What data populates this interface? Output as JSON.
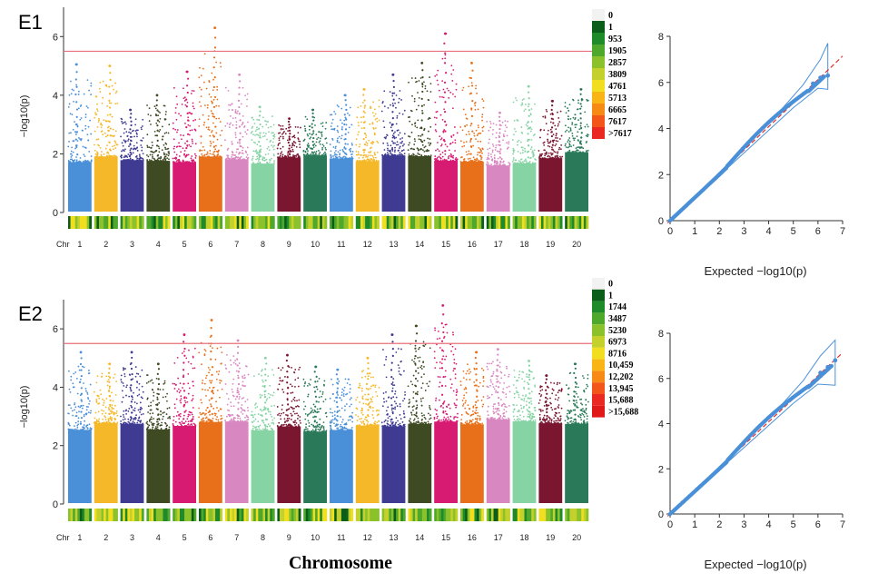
{
  "figure": {
    "bottom_xlabel": "Chromosome",
    "chr_prefix": "Chr"
  },
  "chart_data": [
    {
      "type": "scatter",
      "kind": "manhattan",
      "panel_label": "E1",
      "ylabel": "−log10(p)",
      "ylim": [
        0,
        7
      ],
      "yticks": [
        0,
        2,
        4,
        6
      ],
      "threshold": 5.5,
      "threshold_color": "#e8707a",
      "chromosomes": [
        "1",
        "2",
        "3",
        "4",
        "5",
        "6",
        "7",
        "8",
        "9",
        "10",
        "11",
        "12",
        "13",
        "14",
        "15",
        "16",
        "17",
        "18",
        "19",
        "20"
      ],
      "chromosome_colors": [
        "#4a90d9",
        "#f5b828",
        "#3f3b93",
        "#3e4a22",
        "#d81b72",
        "#e8701a",
        "#d987c0",
        "#86d3a4",
        "#7a1630",
        "#2a7a5a",
        "#4a90d9",
        "#f5b828",
        "#3f3b93",
        "#3e4a22",
        "#d81b72",
        "#e8701a",
        "#d987c0",
        "#86d3a4",
        "#7a1630",
        "#2a7a5a"
      ],
      "chromosome_max_neglogp": [
        5.05,
        5.0,
        3.5,
        4.0,
        4.8,
        6.3,
        4.7,
        3.6,
        3.2,
        3.5,
        4.0,
        4.2,
        4.7,
        5.1,
        6.1,
        5.1,
        3.4,
        4.3,
        3.8,
        4.2
      ],
      "density_legend": [
        "0",
        "1",
        "953",
        "1905",
        "2857",
        "3809",
        "4761",
        "5713",
        "6665",
        "7617",
        ">7617"
      ]
    },
    {
      "type": "scatter",
      "kind": "manhattan",
      "panel_label": "E2",
      "ylabel": "−log10(p)",
      "ylim": [
        0,
        7
      ],
      "yticks": [
        0,
        2,
        4,
        6
      ],
      "threshold": 5.5,
      "threshold_color": "#e8707a",
      "chromosomes": [
        "1",
        "2",
        "3",
        "4",
        "5",
        "6",
        "7",
        "8",
        "9",
        "10",
        "11",
        "12",
        "13",
        "14",
        "15",
        "16",
        "17",
        "18",
        "19",
        "20"
      ],
      "chromosome_colors": [
        "#4a90d9",
        "#f5b828",
        "#3f3b93",
        "#3e4a22",
        "#d81b72",
        "#e8701a",
        "#d987c0",
        "#86d3a4",
        "#7a1630",
        "#2a7a5a",
        "#4a90d9",
        "#f5b828",
        "#3f3b93",
        "#3e4a22",
        "#d81b72",
        "#e8701a",
        "#d987c0",
        "#86d3a4",
        "#7a1630",
        "#2a7a5a"
      ],
      "chromosome_max_neglogp": [
        5.2,
        4.8,
        5.2,
        4.8,
        5.8,
        6.3,
        5.6,
        5.0,
        5.1,
        4.7,
        4.6,
        5.0,
        5.8,
        6.1,
        6.8,
        5.2,
        5.3,
        4.9,
        4.4,
        4.8
      ],
      "density_legend": [
        "0",
        "1",
        "1744",
        "3487",
        "5230",
        "6973",
        "8716",
        "10,459",
        "12,202",
        "13,945",
        "15,688",
        ">15,688"
      ]
    },
    {
      "type": "scatter",
      "kind": "qq",
      "xlabel": "Expected −log10(p)",
      "xlim": [
        0,
        7
      ],
      "ylim": [
        0,
        8
      ],
      "xticks": [
        0,
        1,
        2,
        3,
        4,
        5,
        6,
        7
      ],
      "yticks": [
        0,
        2,
        4,
        6,
        8
      ],
      "max_expected": 6.4,
      "max_observed": 6.3,
      "series_color": "#4a90d9",
      "diagonal_color": "#e03030"
    },
    {
      "type": "scatter",
      "kind": "qq",
      "xlabel": "Expected −log10(p)",
      "xlim": [
        0,
        7
      ],
      "ylim": [
        0,
        8
      ],
      "xticks": [
        0,
        1,
        2,
        3,
        4,
        5,
        6,
        7
      ],
      "yticks": [
        0,
        2,
        4,
        6,
        8
      ],
      "max_expected": 6.7,
      "max_observed": 6.8,
      "series_color": "#4a90d9",
      "diagonal_color": "#e03030"
    }
  ]
}
